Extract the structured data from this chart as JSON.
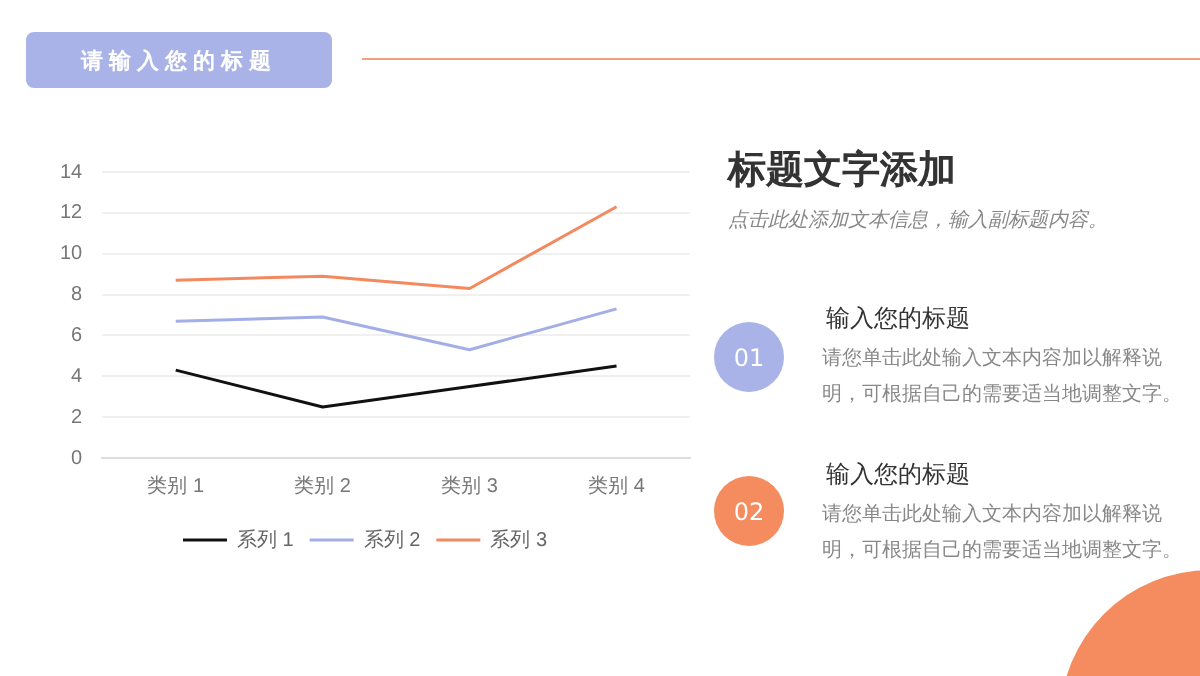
{
  "chart_data": {
    "type": "line",
    "title": "请输入您的标题",
    "categories": [
      "类别 1",
      "类别 2",
      "类别 3",
      "类别 4"
    ],
    "series": [
      {
        "name": "系列 1",
        "color": "#111111",
        "values": [
          4.3,
          2.5,
          3.5,
          4.5
        ]
      },
      {
        "name": "系列 2",
        "color": "#a3aee6",
        "values": [
          6.7,
          6.9,
          5.3,
          7.3
        ]
      },
      {
        "name": "系列 3",
        "color": "#f4895f",
        "values": [
          8.7,
          8.9,
          8.3,
          12.3
        ]
      }
    ],
    "ylim": [
      0,
      14
    ],
    "yticks": [
      0,
      2,
      4,
      6,
      8,
      10,
      12,
      14
    ],
    "grid": "y",
    "legend": "bottom",
    "marker": "none",
    "line_style": "solid",
    "annotations": [
      "标题文字添加",
      "点击此处添加文本信息，输入副标题内容。",
      "01",
      "输入您的标题",
      "请您单击此处输入文本内容加以解释说明，可根据自己的需要适当地调整文字。",
      "02",
      "输入您的标题",
      "请您单击此处输入文本内容加以解释说明，可根据自己的需要适当地调整文字。"
    ]
  }
}
